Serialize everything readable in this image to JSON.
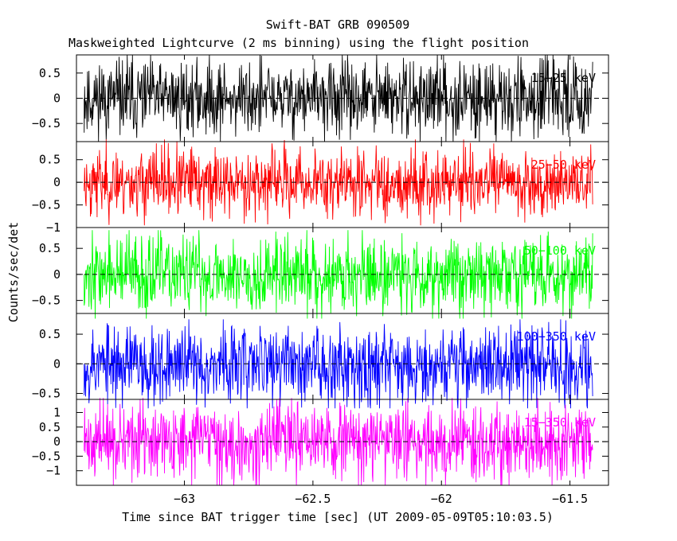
{
  "chart_data": {
    "type": "line",
    "title": "Swift-BAT GRB 090509",
    "subtitle": "Maskweighted Lightcurve (2 ms binning) using the flight position",
    "xlabel": "Time since BAT trigger time [sec] (UT 2009-05-09T05:10:03.5)",
    "ylabel": "Counts/sec/det",
    "xlim": [
      -63.42,
      -61.35
    ],
    "x_ticks": [
      -63,
      -62.5,
      -62,
      -61.5
    ],
    "x_tick_labels": [
      "−63",
      "−62.5",
      "−62",
      "−61.5"
    ],
    "grid": false,
    "panels": [
      {
        "name": "15−25 keV",
        "color": "#000000",
        "ylim": [
          -0.86,
          0.86
        ],
        "y_ticks": [
          0.5,
          0,
          -0.5
        ],
        "y_tick_labels": [
          "0.5",
          "0",
          "−0.5"
        ],
        "data_x_range": [
          -63.39,
          -61.41
        ],
        "amplitude": 0.38,
        "clip": 0.86,
        "seed": 11
      },
      {
        "name": "25−50 keV",
        "color": "#ff0000",
        "ylim": [
          -1.0,
          0.9
        ],
        "y_ticks": [
          0.5,
          0,
          -0.5,
          -1
        ],
        "y_tick_labels": [
          "0.5",
          "0",
          "−0.5",
          "−1"
        ],
        "data_x_range": [
          -63.39,
          -61.41
        ],
        "amplitude": 0.38,
        "clip": 0.95,
        "seed": 23
      },
      {
        "name": "50−100 keV",
        "color": "#00ff00",
        "ylim": [
          -0.75,
          0.9
        ],
        "y_ticks": [
          0.5,
          0,
          -0.5
        ],
        "y_tick_labels": [
          "0.5",
          "0",
          "−0.5"
        ],
        "data_x_range": [
          -63.39,
          -61.41
        ],
        "amplitude": 0.38,
        "clip": 0.85,
        "seed": 37
      },
      {
        "name": "100−350 keV",
        "color": "#0000ff",
        "ylim": [
          -0.6,
          0.85
        ],
        "y_ticks": [
          0.5,
          0,
          -0.5
        ],
        "y_tick_labels": [
          "0.5",
          "0",
          "−0.5"
        ],
        "data_x_range": [
          -63.39,
          -61.41
        ],
        "amplitude": 0.34,
        "clip": 0.75,
        "seed": 53
      },
      {
        "name": "15−350 keV",
        "color": "#ff00ff",
        "ylim": [
          -1.5,
          1.45
        ],
        "y_ticks": [
          1,
          0.5,
          0,
          -0.5,
          -1
        ],
        "y_tick_labels": [
          "1",
          "0.5",
          "0",
          "−0.5",
          "−1"
        ],
        "data_x_range": [
          -63.39,
          -61.41
        ],
        "amplitude": 0.65,
        "clip": 1.5,
        "seed": 71
      }
    ]
  }
}
